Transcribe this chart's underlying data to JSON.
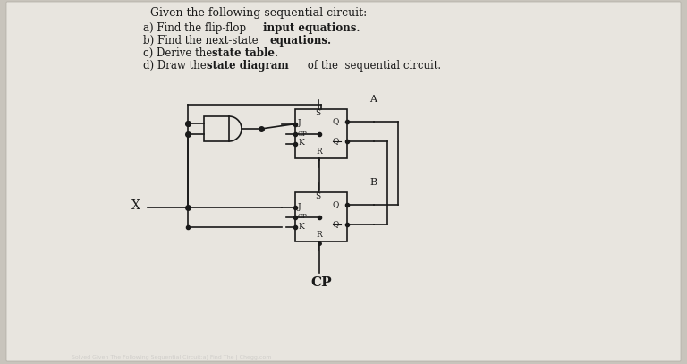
{
  "bg_color": "#c8c4bc",
  "paper_color": "#e8e5df",
  "title": "Given the following sequential circuit:",
  "line_a_normal": "a) Find the flip-flop ",
  "line_a_bold": "input equations.",
  "line_b_normal": "b) Find the next-state ",
  "line_b_bold": "equations.",
  "line_c_normal": "c) Derive the ",
  "line_c_bold": "state table.",
  "line_d_normal": "d) Draw the ",
  "line_d_bold": "state diagram",
  "line_d_end": " of the  sequential circuit.",
  "color": "#1a1a1a",
  "lw": 1.2
}
